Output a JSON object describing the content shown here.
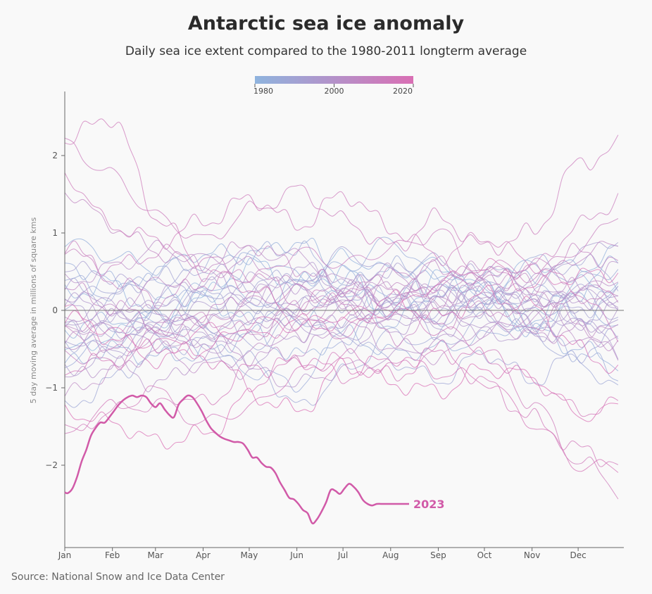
{
  "chart_data": {
    "type": "line",
    "title": "Antarctic sea ice anomaly",
    "subtitle": "Daily sea ice extent compared to the 1980-2011 longterm average",
    "ylabel": "5 day moving average in millions of square kms",
    "source": "Source: National Snow and Ice Data Center",
    "x_ticks": [
      "Jan",
      "Feb",
      "Mar",
      "Apr",
      "May",
      "Jun",
      "Jul",
      "Aug",
      "Sep",
      "Oct",
      "Nov",
      "Dec"
    ],
    "y_ticks": [
      "2",
      "1",
      "0",
      "−1",
      "−2"
    ],
    "ylim": [
      -3.0,
      2.8
    ],
    "xlim": [
      1,
      366
    ],
    "grid": false,
    "legend": {
      "placement": "top-center",
      "type": "year color scale",
      "labels": [
        "1980",
        "2000",
        "2020"
      ],
      "range": [
        1980,
        2022
      ],
      "color_start": "#8fb4de",
      "color_end": "#d96fb4"
    },
    "highlight_series": {
      "name": "2023",
      "color": "#d15aa8",
      "x": [
        1,
        3,
        6,
        9,
        12,
        15,
        18,
        21,
        24,
        27,
        30,
        33,
        36,
        39,
        42,
        45,
        48,
        51,
        54,
        57,
        60,
        63,
        66,
        69,
        72,
        75,
        78,
        81,
        84,
        87,
        90,
        93,
        96,
        99,
        102,
        105,
        108,
        111,
        114,
        117,
        120,
        123,
        126,
        129,
        132,
        135,
        138,
        141,
        144,
        147,
        150,
        153,
        156,
        159,
        162,
        165,
        168,
        171,
        174,
        177,
        180,
        183,
        186,
        189,
        192,
        195,
        198,
        201,
        204,
        207,
        210,
        213,
        216,
        219,
        222,
        225
      ],
      "values": [
        -2.35,
        -2.36,
        -2.3,
        -2.15,
        -1.95,
        -1.8,
        -1.62,
        -1.52,
        -1.45,
        -1.45,
        -1.38,
        -1.3,
        -1.22,
        -1.16,
        -1.12,
        -1.1,
        -1.12,
        -1.1,
        -1.12,
        -1.2,
        -1.25,
        -1.2,
        -1.28,
        -1.35,
        -1.38,
        -1.22,
        -1.15,
        -1.1,
        -1.12,
        -1.2,
        -1.3,
        -1.42,
        -1.52,
        -1.58,
        -1.63,
        -1.66,
        -1.68,
        -1.7,
        -1.7,
        -1.72,
        -1.8,
        -1.9,
        -1.9,
        -1.97,
        -2.02,
        -2.03,
        -2.1,
        -2.22,
        -2.32,
        -2.42,
        -2.44,
        -2.5,
        -2.58,
        -2.62,
        -2.75,
        -2.7,
        -2.6,
        -2.48,
        -2.32,
        -2.33,
        -2.37,
        -2.3,
        -2.24,
        -2.28,
        -2.35,
        -2.45,
        -2.5,
        -2.52,
        -2.5,
        -2.5,
        -2.5,
        -2.5,
        -2.5,
        -2.5,
        -2.5,
        -2.5
      ]
    },
    "highlight_label": "2023",
    "background_series": [
      {
        "year": 1980,
        "anchors": [
          -0.55,
          -0.35,
          0.1,
          0.2,
          0.6,
          0.35,
          0.5,
          -0.1,
          0.45,
          0.25,
          -0.3,
          0.35,
          0.3
        ]
      },
      {
        "year": 1981,
        "anchors": [
          0.2,
          0.35,
          -0.1,
          0.15,
          -0.15,
          0.35,
          0.7,
          0.5,
          0.6,
          0.25,
          0.6,
          0.55,
          0.8
        ]
      },
      {
        "year": 1982,
        "anchors": [
          -0.25,
          -0.1,
          -0.15,
          0.35,
          0.15,
          -0.1,
          0.25,
          0.2,
          0.5,
          0.15,
          -0.1,
          0.25,
          0.75
        ]
      },
      {
        "year": 1983,
        "anchors": [
          0.9,
          0.7,
          0.55,
          0.75,
          0.7,
          0.9,
          0.45,
          -0.2,
          0.25,
          0.1,
          -0.25,
          -0.5,
          -0.7
        ]
      },
      {
        "year": 1984,
        "anchors": [
          -0.7,
          -0.5,
          -0.6,
          -0.55,
          -0.3,
          -0.6,
          -0.3,
          -0.55,
          -0.5,
          -0.35,
          -0.05,
          0.15,
          -0.3
        ]
      },
      {
        "year": 1985,
        "anchors": [
          0.6,
          0.4,
          0.35,
          0.15,
          0.7,
          0.45,
          0.55,
          0.9,
          0.4,
          0.2,
          0.45,
          -0.1,
          0.25
        ]
      },
      {
        "year": 1986,
        "anchors": [
          -0.65,
          -0.4,
          -0.25,
          -0.55,
          -0.8,
          -0.95,
          -0.35,
          0.05,
          -0.1,
          0.15,
          -0.2,
          -0.55,
          -0.9
        ]
      },
      {
        "year": 1987,
        "anchors": [
          0.4,
          0.2,
          0.55,
          0.6,
          0.75,
          0.8,
          0.3,
          0.6,
          0.15,
          0.45,
          0.65,
          0.4,
          0.55
        ]
      },
      {
        "year": 1988,
        "anchors": [
          -1.3,
          -0.9,
          -0.5,
          -0.4,
          -0.65,
          -1.25,
          -0.8,
          -0.3,
          -0.45,
          -0.1,
          -0.3,
          -0.7,
          -1.05
        ]
      },
      {
        "year": 1989,
        "anchors": [
          -0.45,
          -0.25,
          -0.05,
          -0.2,
          -0.45,
          -0.1,
          -0.3,
          -0.65,
          -0.9,
          -0.55,
          -0.9,
          -0.55,
          -0.3
        ]
      },
      {
        "year": 1990,
        "anchors": [
          0.1,
          0.3,
          0.25,
          0.55,
          0.35,
          0.45,
          0.1,
          0.15,
          -0.25,
          0.15,
          0.25,
          0.65,
          0.35
        ]
      },
      {
        "year": 1991,
        "anchors": [
          0.3,
          0.15,
          0.45,
          0.2,
          -0.15,
          -0.05,
          -0.2,
          0.15,
          -0.1,
          0.3,
          0.1,
          0.25,
          -0.15
        ]
      },
      {
        "year": 1992,
        "anchors": [
          -0.2,
          -0.35,
          -0.1,
          -0.3,
          0.1,
          0.25,
          0.75,
          0.5,
          0.65,
          0.35,
          -0.2,
          0.0,
          0.2
        ]
      },
      {
        "year": 1993,
        "anchors": [
          -0.35,
          -0.55,
          -0.2,
          0.25,
          0.05,
          0.45,
          0.25,
          0.2,
          0.3,
          0.55,
          0.25,
          0.05,
          0.2
        ]
      },
      {
        "year": 1994,
        "anchors": [
          0.55,
          0.45,
          0.1,
          -0.1,
          -0.25,
          0.1,
          0.25,
          0.55,
          0.2,
          0.0,
          0.35,
          0.75,
          0.95
        ]
      },
      {
        "year": 1995,
        "anchors": [
          0.05,
          -0.15,
          0.0,
          0.3,
          0.4,
          0.05,
          0.2,
          0.0,
          0.25,
          0.15,
          0.05,
          -0.2,
          -0.15
        ]
      },
      {
        "year": 1996,
        "anchors": [
          -0.8,
          -0.55,
          -0.3,
          0.05,
          0.3,
          -0.2,
          -0.35,
          0.05,
          -0.25,
          -0.05,
          -0.3,
          -0.1,
          0.0
        ]
      },
      {
        "year": 1997,
        "anchors": [
          -0.1,
          -0.3,
          -0.45,
          -0.25,
          -0.65,
          -0.3,
          -0.1,
          0.2,
          -0.05,
          0.2,
          0.1,
          -0.15,
          -0.55
        ]
      },
      {
        "year": 1998,
        "anchors": [
          0.15,
          -0.05,
          0.2,
          0.4,
          0.2,
          0.55,
          0.3,
          0.15,
          0.3,
          0.1,
          0.4,
          0.2,
          0.15
        ]
      },
      {
        "year": 1999,
        "anchors": [
          -0.25,
          -0.1,
          -0.2,
          -0.45,
          -0.2,
          0.25,
          0.05,
          -0.2,
          0.1,
          -0.3,
          -0.35,
          -0.2,
          -0.1
        ]
      },
      {
        "year": 2000,
        "anchors": [
          -0.1,
          0.1,
          -0.35,
          -0.5,
          -0.3,
          -0.05,
          -0.45,
          -0.25,
          0.05,
          0.2,
          -0.15,
          0.15,
          -0.05
        ]
      },
      {
        "year": 2001,
        "anchors": [
          0.2,
          0.05,
          -0.25,
          -0.1,
          0.15,
          0.35,
          0.45,
          0.0,
          -0.1,
          -0.25,
          0.1,
          0.3,
          0.1
        ]
      },
      {
        "year": 2002,
        "anchors": [
          -0.9,
          -0.7,
          -0.95,
          -0.6,
          -0.8,
          -0.95,
          -0.75,
          -0.6,
          -0.4,
          -0.25,
          -0.1,
          -0.45,
          -0.3
        ]
      },
      {
        "year": 2003,
        "anchors": [
          0.35,
          0.55,
          0.8,
          0.65,
          0.75,
          0.7,
          0.35,
          0.5,
          0.2,
          0.3,
          0.15,
          0.3,
          0.6
        ]
      },
      {
        "year": 2004,
        "anchors": [
          -0.45,
          -0.2,
          0.0,
          -0.25,
          -0.1,
          -0.3,
          0.1,
          0.35,
          0.1,
          0.3,
          0.2,
          -0.35,
          -0.6
        ]
      },
      {
        "year": 2005,
        "anchors": [
          -0.3,
          -0.45,
          -0.15,
          -0.4,
          -0.6,
          -0.55,
          -0.2,
          -0.45,
          -0.6,
          -0.3,
          -0.1,
          0.25,
          0.45
        ]
      },
      {
        "year": 2006,
        "anchors": [
          -1.1,
          -0.8,
          -0.5,
          -0.75,
          -0.55,
          -0.2,
          0.05,
          -0.15,
          0.1,
          -0.1,
          -0.35,
          -0.25,
          -0.5
        ]
      },
      {
        "year": 2007,
        "anchors": [
          -0.25,
          0.0,
          0.35,
          0.5,
          0.6,
          0.3,
          0.0,
          0.25,
          0.55,
          0.5,
          0.35,
          -0.2,
          -0.3
        ]
      },
      {
        "year": 2008,
        "anchors": [
          1.55,
          1.1,
          0.75,
          0.6,
          0.85,
          0.55,
          0.25,
          0.4,
          0.15,
          0.5,
          0.3,
          0.7,
          0.9
        ]
      },
      {
        "year": 2009,
        "anchors": [
          0.3,
          0.05,
          -0.15,
          -0.05,
          0.25,
          0.0,
          0.3,
          0.1,
          0.35,
          0.45,
          0.6,
          0.4,
          0.25
        ]
      },
      {
        "year": 2010,
        "anchors": [
          -0.3,
          -0.55,
          -0.35,
          -0.15,
          0.1,
          0.25,
          0.15,
          0.45,
          0.6,
          0.3,
          0.5,
          0.75,
          0.6
        ]
      },
      {
        "year": 2011,
        "anchors": [
          -0.55,
          -0.7,
          -0.3,
          -0.1,
          -0.3,
          0.05,
          0.1,
          -0.35,
          -0.15,
          0.05,
          -0.2,
          0.2,
          0.1
        ]
      },
      {
        "year": 2012,
        "anchors": [
          0.85,
          0.4,
          0.15,
          0.35,
          0.5,
          0.1,
          0.3,
          0.05,
          0.35,
          0.6,
          0.45,
          0.8,
          1.3
        ]
      },
      {
        "year": 2013,
        "anchors": [
          0.8,
          0.55,
          0.75,
          0.65,
          0.4,
          0.75,
          0.6,
          0.8,
          1.0,
          0.45,
          0.55,
          1.1,
          1.5
        ]
      },
      {
        "year": 2014,
        "anchors": [
          2.15,
          1.75,
          1.2,
          0.9,
          1.3,
          1.55,
          1.15,
          0.8,
          1.2,
          0.8,
          1.0,
          1.9,
          2.15
        ]
      },
      {
        "year": 2015,
        "anchors": [
          1.75,
          1.1,
          0.9,
          1.15,
          1.45,
          1.1,
          1.5,
          1.05,
          0.7,
          0.95,
          0.6,
          0.25,
          -0.45
        ]
      },
      {
        "year": 2016,
        "anchors": [
          2.2,
          2.5,
          1.2,
          0.5,
          0.3,
          -0.15,
          -0.3,
          0.0,
          -0.25,
          -0.5,
          -1.2,
          -1.95,
          -2.35
        ]
      },
      {
        "year": 2017,
        "anchors": [
          -1.65,
          -1.3,
          -1.2,
          -1.45,
          -1.25,
          -0.8,
          -0.6,
          -0.75,
          -0.5,
          -0.95,
          -1.4,
          -1.8,
          -2.0
        ]
      },
      {
        "year": 2018,
        "anchors": [
          -1.55,
          -1.25,
          -1.05,
          -1.2,
          -0.75,
          -0.7,
          -0.65,
          -0.85,
          -0.55,
          -0.6,
          -0.9,
          -1.3,
          -1.2
        ]
      },
      {
        "year": 2019,
        "anchors": [
          -0.75,
          -0.65,
          -0.45,
          -0.6,
          -0.95,
          -0.6,
          -0.85,
          -0.6,
          -0.8,
          -0.9,
          -1.45,
          -2.0,
          -2.05
        ]
      },
      {
        "year": 2020,
        "anchors": [
          -0.05,
          -0.35,
          -0.65,
          -0.5,
          -0.15,
          -0.2,
          -0.05,
          0.0,
          0.35,
          0.6,
          0.3,
          0.45,
          0.5
        ]
      },
      {
        "year": 2021,
        "anchors": [
          0.0,
          -0.3,
          -0.45,
          -0.25,
          -0.35,
          -0.15,
          -0.2,
          0.15,
          -0.1,
          0.2,
          0.05,
          -0.5,
          -0.85
        ]
      },
      {
        "year": 2022,
        "anchors": [
          -1.3,
          -1.45,
          -1.7,
          -1.6,
          -1.1,
          -1.3,
          -0.7,
          -0.95,
          -1.05,
          -0.75,
          -0.85,
          -1.35,
          -1.25
        ]
      }
    ]
  }
}
